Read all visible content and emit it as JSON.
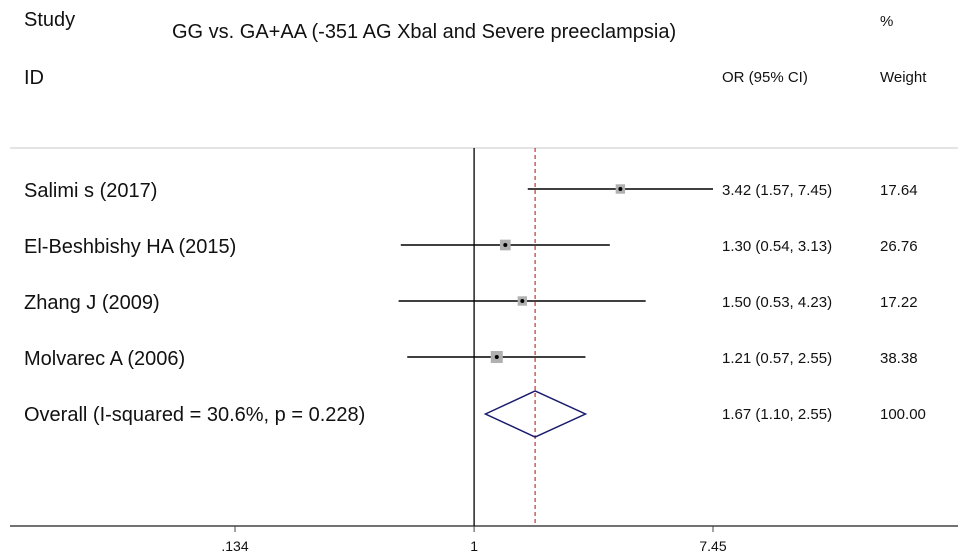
{
  "header": {
    "col_study": "Study",
    "col_id": "ID",
    "title": "GG vs. GA+AA (-351 AG Xbal and Severe preeclampsia)",
    "col_pct": "%",
    "col_or": "OR (95% CI)",
    "col_weight": "Weight"
  },
  "chart_data": {
    "type": "forest",
    "title": "GG vs. GA+AA (-351 AG Xbal and Severe preeclampsia)",
    "scale": "log",
    "xlim": [
      0.134,
      7.45
    ],
    "null_line": 1,
    "overall_line": 1.67,
    "x_ticks": [
      {
        "value": 0.134,
        "label": ".134"
      },
      {
        "value": 1,
        "label": "1"
      },
      {
        "value": 7.45,
        "label": "7.45"
      }
    ],
    "studies": [
      {
        "name": "Salimi s (2017)",
        "or": 3.42,
        "lo": 1.57,
        "hi": 7.45,
        "ci_text": "3.42 (1.57, 7.45)",
        "weight": 17.64,
        "weight_text": "17.64"
      },
      {
        "name": "El-Beshbishy HA (2015)",
        "or": 1.3,
        "lo": 0.54,
        "hi": 3.13,
        "ci_text": "1.30 (0.54, 3.13)",
        "weight": 26.76,
        "weight_text": "26.76"
      },
      {
        "name": "Zhang J (2009)",
        "or": 1.5,
        "lo": 0.53,
        "hi": 4.23,
        "ci_text": "1.50 (0.53, 4.23)",
        "weight": 17.22,
        "weight_text": "17.22"
      },
      {
        "name": "Molvarec A (2006)",
        "or": 1.21,
        "lo": 0.57,
        "hi": 2.55,
        "ci_text": "1.21 (0.57, 2.55)",
        "weight": 38.38,
        "weight_text": "38.38"
      }
    ],
    "overall": {
      "label": "Overall  (I-squared = 30.6%, p = 0.228)",
      "or": 1.67,
      "lo": 1.1,
      "hi": 2.55,
      "ci_text": "1.67 (1.10, 2.55)",
      "weight_text": "100.00"
    },
    "colors": {
      "line": "#000000",
      "diamond": "#1a1a6e",
      "overall_line": "#c0392b",
      "weight_box": "#b0b0b0",
      "divider": "#c8c8c8"
    }
  }
}
